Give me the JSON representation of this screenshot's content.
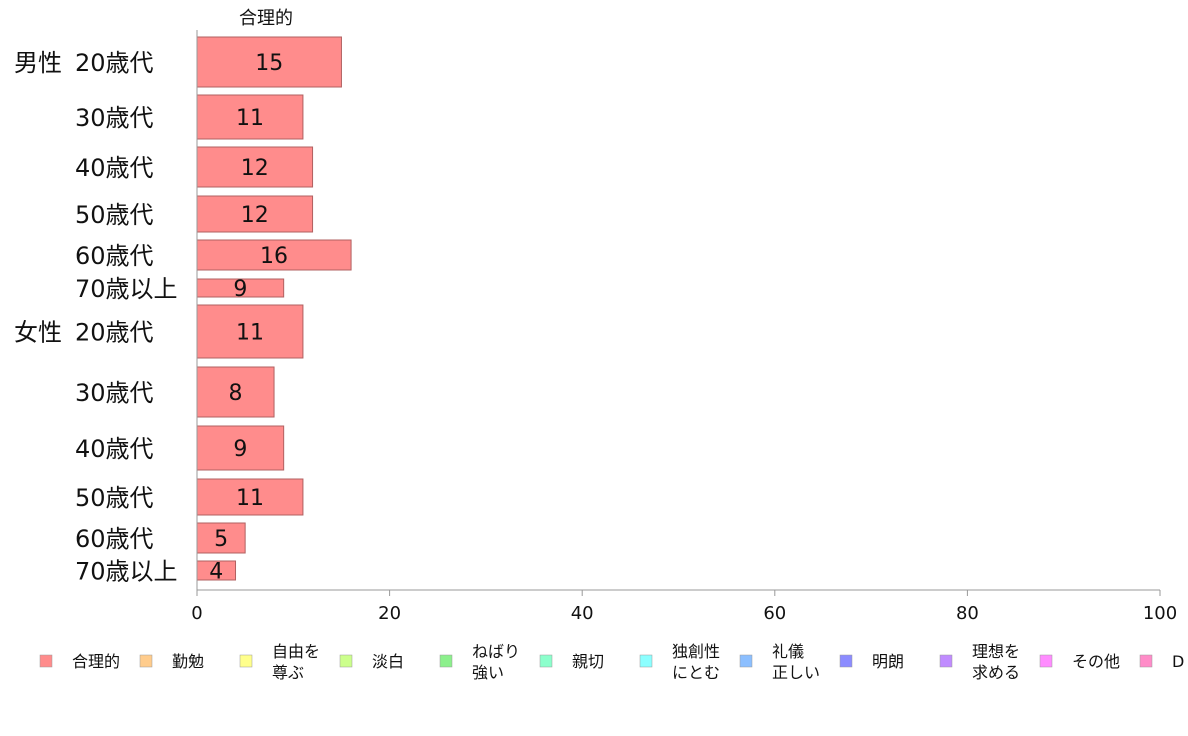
{
  "chart_data": {
    "type": "bar",
    "orientation": "horizontal",
    "column_title": "合理的",
    "groups": [
      {
        "label": "男性",
        "categories": [
          "20歳代",
          "30歳代",
          "40歳代",
          "50歳代",
          "60歳代",
          "70歳以上"
        ]
      },
      {
        "label": "女性",
        "categories": [
          "20歳代",
          "30歳代",
          "40歳代",
          "50歳代",
          "60歳代",
          "70歳以上"
        ]
      }
    ],
    "series": [
      {
        "name": "合理的",
        "color": "#ff8c8c",
        "values": [
          15,
          11,
          12,
          12,
          16,
          9,
          11,
          8,
          9,
          11,
          5,
          4
        ]
      }
    ],
    "xlim": [
      0,
      100
    ],
    "xticks": [
      "0",
      "20",
      "40",
      "60",
      "80",
      "100"
    ],
    "grid": false,
    "legend_position": "bottom",
    "legend": [
      {
        "label": "合理的",
        "color": "#ff8c8c"
      },
      {
        "label": "勤勉",
        "color": "#ffcc8c"
      },
      {
        "label": "自由を\n尊ぶ",
        "color": "#ffff8c"
      },
      {
        "label": "淡白",
        "color": "#ccff8c"
      },
      {
        "label": "ねばり\n強い",
        "color": "#8cf08c"
      },
      {
        "label": "親切",
        "color": "#8cffcc"
      },
      {
        "label": "独創性\nにとむ",
        "color": "#8cffff"
      },
      {
        "label": "礼儀\n正しい",
        "color": "#8cbfff"
      },
      {
        "label": "明朗",
        "color": "#8c8cff"
      },
      {
        "label": "理想を\n求める",
        "color": "#c08cff"
      },
      {
        "label": "その他",
        "color": "#ff8cff"
      },
      {
        "label": "D",
        "color": "#ff8cc8"
      }
    ]
  }
}
